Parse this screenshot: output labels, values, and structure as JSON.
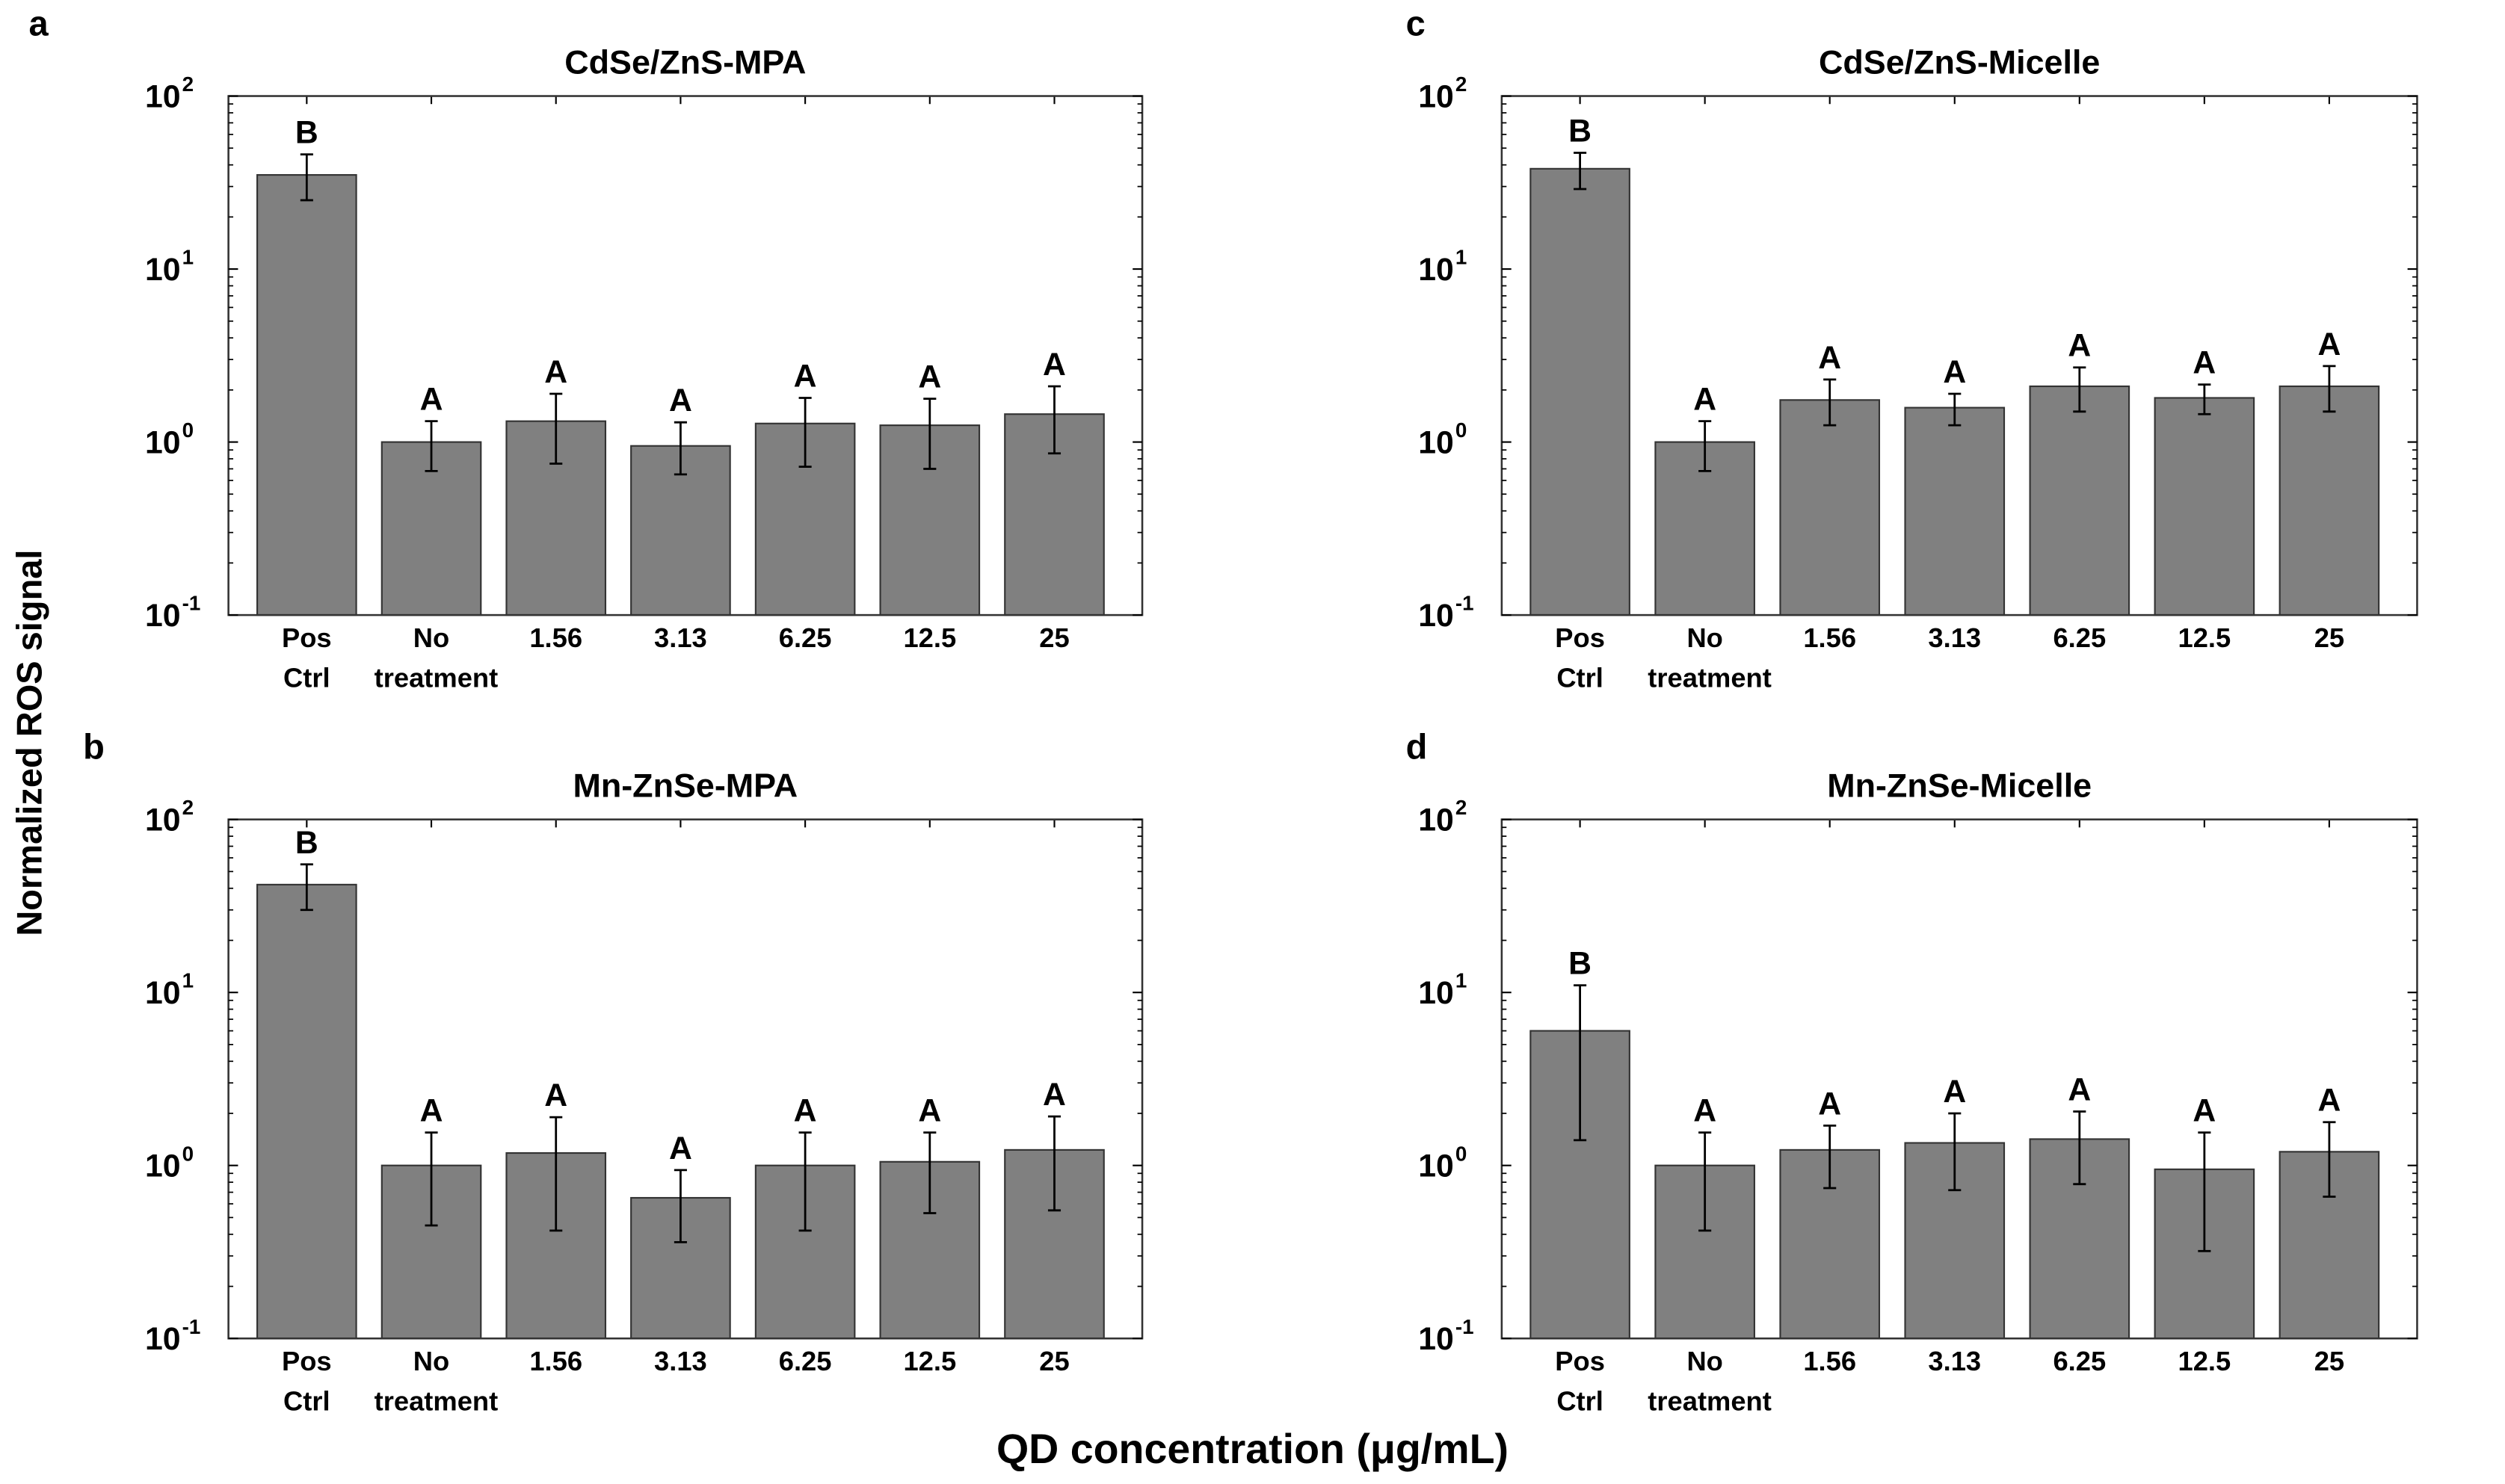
{
  "figure": {
    "ylabel": "Normalized ROS signal",
    "xlabel": "QD concentration (μg/mL)",
    "bar_color": "#808080",
    "edge_color": "#333333"
  },
  "chart_data": [
    {
      "panel": "a",
      "type": "bar",
      "title": "CdSe/ZnS-MPA",
      "yscale": "log",
      "ylim": [
        0.1,
        100
      ],
      "yticks": [
        "10",
        "10",
        "10",
        "10"
      ],
      "ytick_exponents": [
        "2",
        "1",
        "0",
        "-1"
      ],
      "ytick_values": [
        100,
        10,
        1,
        0.1
      ],
      "categories": [
        [
          "Pos",
          "Ctrl"
        ],
        [
          "No",
          "treatment"
        ],
        [
          "1.56",
          ""
        ],
        [
          "3.13",
          ""
        ],
        [
          "6.25",
          ""
        ],
        [
          "12.5",
          ""
        ],
        [
          "25",
          ""
        ]
      ],
      "values": [
        35,
        1.0,
        1.32,
        0.95,
        1.28,
        1.25,
        1.45
      ],
      "err_low": [
        25,
        0.68,
        0.75,
        0.65,
        0.72,
        0.7,
        0.86
      ],
      "err_high": [
        46,
        1.32,
        1.9,
        1.3,
        1.8,
        1.78,
        2.1
      ],
      "letters": [
        "B",
        "A",
        "A",
        "A",
        "A",
        "A",
        "A"
      ]
    },
    {
      "panel": "c",
      "type": "bar",
      "title": "CdSe/ZnS-Micelle",
      "yscale": "log",
      "ylim": [
        0.1,
        100
      ],
      "yticks": [
        "10",
        "10",
        "10",
        "10"
      ],
      "ytick_exponents": [
        "2",
        "1",
        "0",
        "-1"
      ],
      "ytick_values": [
        100,
        10,
        1,
        0.1
      ],
      "categories": [
        [
          "Pos",
          "Ctrl"
        ],
        [
          "No",
          "treatment"
        ],
        [
          "1.56",
          ""
        ],
        [
          "3.13",
          ""
        ],
        [
          "6.25",
          ""
        ],
        [
          "12.5",
          ""
        ],
        [
          "25",
          ""
        ]
      ],
      "values": [
        38,
        1.0,
        1.75,
        1.58,
        2.1,
        1.8,
        2.1
      ],
      "err_low": [
        29,
        0.68,
        1.25,
        1.25,
        1.5,
        1.45,
        1.5
      ],
      "err_high": [
        47,
        1.32,
        2.3,
        1.9,
        2.7,
        2.15,
        2.75
      ],
      "letters": [
        "B",
        "A",
        "A",
        "A",
        "A",
        "A",
        "A"
      ]
    },
    {
      "panel": "b",
      "type": "bar",
      "title": "Mn-ZnSe-MPA",
      "yscale": "log",
      "ylim": [
        0.1,
        100
      ],
      "yticks": [
        "10",
        "10",
        "10",
        "10"
      ],
      "ytick_exponents": [
        "2",
        "1",
        "0",
        "-1"
      ],
      "ytick_values": [
        100,
        10,
        1,
        0.1
      ],
      "categories": [
        [
          "Pos",
          "Ctrl"
        ],
        [
          "No",
          "treatment"
        ],
        [
          "1.56",
          ""
        ],
        [
          "3.13",
          ""
        ],
        [
          "6.25",
          ""
        ],
        [
          "12.5",
          ""
        ],
        [
          "25",
          ""
        ]
      ],
      "values": [
        42,
        1.0,
        1.18,
        0.65,
        1.0,
        1.05,
        1.23
      ],
      "err_low": [
        30,
        0.45,
        0.42,
        0.36,
        0.42,
        0.53,
        0.55
      ],
      "err_high": [
        55,
        1.55,
        1.9,
        0.94,
        1.55,
        1.55,
        1.92
      ],
      "letters": [
        "B",
        "A",
        "A",
        "A",
        "A",
        "A",
        "A"
      ]
    },
    {
      "panel": "d",
      "type": "bar",
      "title": "Mn-ZnSe-Micelle",
      "yscale": "log",
      "ylim": [
        0.1,
        100
      ],
      "yticks": [
        "10",
        "10",
        "10",
        "10"
      ],
      "ytick_exponents": [
        "2",
        "1",
        "0",
        "-1"
      ],
      "ytick_values": [
        100,
        10,
        1,
        0.1
      ],
      "categories": [
        [
          "Pos",
          "Ctrl"
        ],
        [
          "No",
          "treatment"
        ],
        [
          "1.56",
          ""
        ],
        [
          "3.13",
          ""
        ],
        [
          "6.25",
          ""
        ],
        [
          "12.5",
          ""
        ],
        [
          "25",
          ""
        ]
      ],
      "values": [
        6.0,
        1.0,
        1.23,
        1.35,
        1.42,
        0.95,
        1.2
      ],
      "err_low": [
        1.4,
        0.42,
        0.74,
        0.72,
        0.78,
        0.32,
        0.66
      ],
      "err_high": [
        11,
        1.55,
        1.7,
        2.0,
        2.05,
        1.55,
        1.78
      ],
      "letters": [
        "B",
        "A",
        "A",
        "A",
        "A",
        "A",
        "A"
      ]
    }
  ]
}
